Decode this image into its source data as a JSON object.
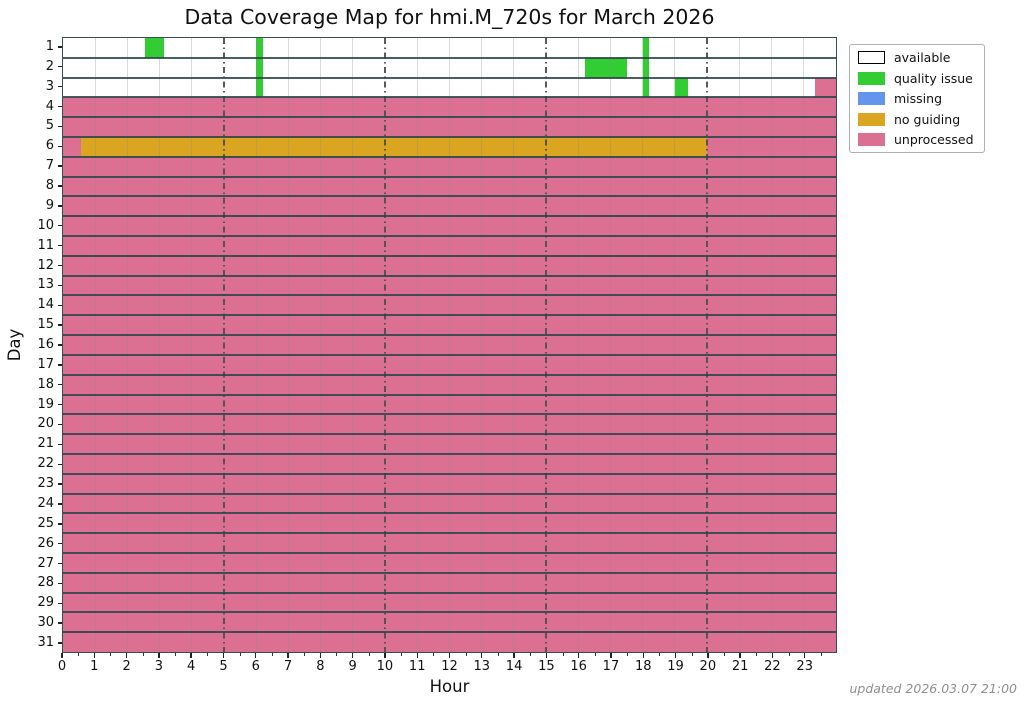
{
  "title": "Data Coverage Map for hmi.M_720s for March 2026",
  "updated_note": "updated 2026.03.07 21:00",
  "chart_data": {
    "type": "heatmap",
    "title": "Data Coverage Map for hmi.M_720s for March 2026",
    "xlabel": "Hour",
    "ylabel": "Day",
    "x_range": [
      0,
      24
    ],
    "x_ticks": [
      "0",
      "1",
      "2",
      "3",
      "4",
      "5",
      "6",
      "7",
      "8",
      "9",
      "10",
      "11",
      "12",
      "13",
      "14",
      "15",
      "16",
      "17",
      "18",
      "19",
      "20",
      "21",
      "22",
      "23"
    ],
    "major_gridlines_hours": [
      5,
      10,
      15,
      20
    ],
    "grid": true,
    "legend_position": "upper right, outside plot",
    "status_colors": {
      "available": "#ffffff",
      "quality_issue": "#32CD32",
      "missing": "#6495ED",
      "no_guiding": "#DAA520",
      "unprocessed": "#DB7093"
    },
    "legend": [
      {
        "key": "available",
        "label": "available"
      },
      {
        "key": "quality_issue",
        "label": "quality issue"
      },
      {
        "key": "missing",
        "label": "missing"
      },
      {
        "key": "no_guiding",
        "label": "no guiding"
      },
      {
        "key": "unprocessed",
        "label": "unprocessed"
      }
    ],
    "rows": [
      {
        "day": 1,
        "base": "available",
        "segments": [
          {
            "status": "quality_issue",
            "start": 2.55,
            "end": 3.15
          },
          {
            "status": "quality_issue",
            "start": 6.0,
            "end": 6.2
          },
          {
            "status": "quality_issue",
            "start": 18.0,
            "end": 18.2
          }
        ]
      },
      {
        "day": 2,
        "base": "available",
        "segments": [
          {
            "status": "quality_issue",
            "start": 6.0,
            "end": 6.2
          },
          {
            "status": "quality_issue",
            "start": 16.2,
            "end": 17.5
          },
          {
            "status": "quality_issue",
            "start": 18.0,
            "end": 18.2
          }
        ]
      },
      {
        "day": 3,
        "base": "available",
        "segments": [
          {
            "status": "quality_issue",
            "start": 6.0,
            "end": 6.2
          },
          {
            "status": "quality_issue",
            "start": 18.0,
            "end": 18.2
          },
          {
            "status": "quality_issue",
            "start": 19.0,
            "end": 19.4
          },
          {
            "status": "unprocessed",
            "start": 23.35,
            "end": 24
          }
        ]
      },
      {
        "day": 4,
        "base": "unprocessed",
        "segments": []
      },
      {
        "day": 5,
        "base": "unprocessed",
        "segments": []
      },
      {
        "day": 6,
        "base": "unprocessed",
        "segments": [
          {
            "status": "no_guiding",
            "start": 0.55,
            "end": 20.0
          }
        ]
      },
      {
        "day": 7,
        "base": "unprocessed",
        "segments": []
      },
      {
        "day": 8,
        "base": "unprocessed",
        "segments": []
      },
      {
        "day": 9,
        "base": "unprocessed",
        "segments": []
      },
      {
        "day": 10,
        "base": "unprocessed",
        "segments": []
      },
      {
        "day": 11,
        "base": "unprocessed",
        "segments": []
      },
      {
        "day": 12,
        "base": "unprocessed",
        "segments": []
      },
      {
        "day": 13,
        "base": "unprocessed",
        "segments": []
      },
      {
        "day": 14,
        "base": "unprocessed",
        "segments": []
      },
      {
        "day": 15,
        "base": "unprocessed",
        "segments": []
      },
      {
        "day": 16,
        "base": "unprocessed",
        "segments": []
      },
      {
        "day": 17,
        "base": "unprocessed",
        "segments": []
      },
      {
        "day": 18,
        "base": "unprocessed",
        "segments": []
      },
      {
        "day": 19,
        "base": "unprocessed",
        "segments": []
      },
      {
        "day": 20,
        "base": "unprocessed",
        "segments": []
      },
      {
        "day": 21,
        "base": "unprocessed",
        "segments": []
      },
      {
        "day": 22,
        "base": "unprocessed",
        "segments": []
      },
      {
        "day": 23,
        "base": "unprocessed",
        "segments": []
      },
      {
        "day": 24,
        "base": "unprocessed",
        "segments": []
      },
      {
        "day": 25,
        "base": "unprocessed",
        "segments": []
      },
      {
        "day": 26,
        "base": "unprocessed",
        "segments": []
      },
      {
        "day": 27,
        "base": "unprocessed",
        "segments": []
      },
      {
        "day": 28,
        "base": "unprocessed",
        "segments": []
      },
      {
        "day": 29,
        "base": "unprocessed",
        "segments": []
      },
      {
        "day": 30,
        "base": "unprocessed",
        "segments": []
      },
      {
        "day": 31,
        "base": "unprocessed",
        "segments": []
      }
    ]
  }
}
